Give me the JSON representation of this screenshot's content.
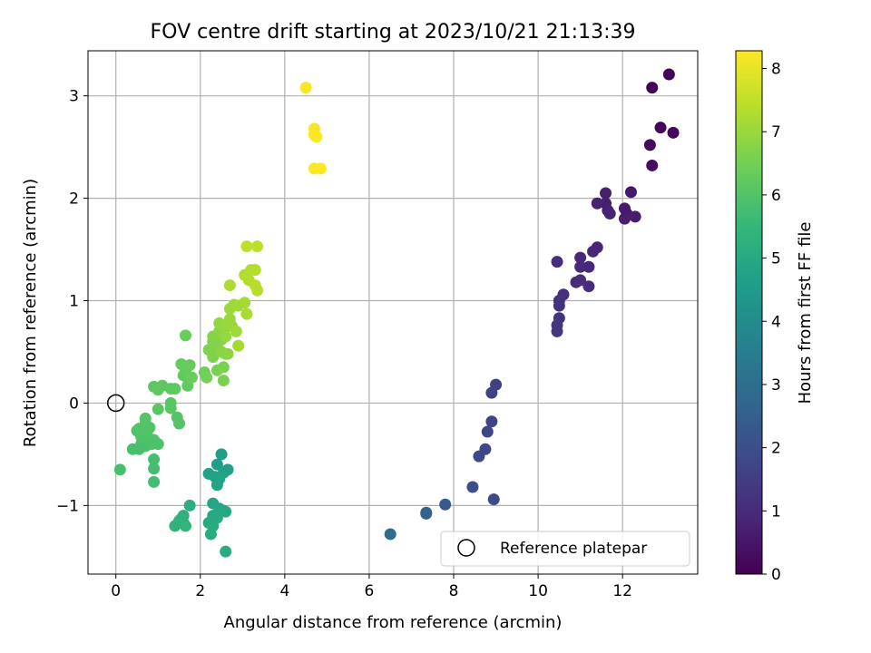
{
  "chart_data": {
    "type": "scatter",
    "title": "FOV centre drift starting at 2023/10/21 21:13:39",
    "xlabel": "Angular distance from reference (arcmin)",
    "ylabel": "Rotation from reference (arcmin)",
    "xlim": [
      -0.66,
      13.78
    ],
    "ylim": [
      -1.67,
      3.44
    ],
    "xticks": [
      0,
      2,
      4,
      6,
      8,
      10,
      12
    ],
    "yticks": [
      -1,
      0,
      1,
      2,
      3
    ],
    "grid": true,
    "legend": {
      "position": "lower-right",
      "entries": [
        "Reference platepar"
      ]
    },
    "reference_point": {
      "x": 0,
      "y": 0
    },
    "colorbar": {
      "label": "Hours from first FF file",
      "range": [
        0,
        8.28
      ],
      "ticks": [
        0,
        1,
        2,
        3,
        4,
        5,
        6,
        7,
        8
      ],
      "colormap": "viridis",
      "colors": [
        "#440154",
        "#482878",
        "#3e4989",
        "#31688e",
        "#26828e",
        "#1f9e89",
        "#35b779",
        "#6ece58",
        "#b5de2b",
        "#fde725"
      ]
    },
    "points": [
      {
        "x": 12.7,
        "y": 3.08,
        "c": 0.05
      },
      {
        "x": 13.1,
        "y": 3.21,
        "c": 0.1
      },
      {
        "x": 12.9,
        "y": 2.69,
        "c": 0.15
      },
      {
        "x": 13.2,
        "y": 2.64,
        "c": 0.2
      },
      {
        "x": 12.65,
        "y": 2.52,
        "c": 0.25
      },
      {
        "x": 12.7,
        "y": 2.32,
        "c": 0.3
      },
      {
        "x": 12.2,
        "y": 2.06,
        "c": 0.55
      },
      {
        "x": 12.05,
        "y": 1.9,
        "c": 0.6
      },
      {
        "x": 12.1,
        "y": 1.85,
        "c": 0.6
      },
      {
        "x": 12.3,
        "y": 1.82,
        "c": 0.65
      },
      {
        "x": 12.05,
        "y": 1.8,
        "c": 0.65
      },
      {
        "x": 11.6,
        "y": 2.05,
        "c": 0.7
      },
      {
        "x": 11.6,
        "y": 1.95,
        "c": 0.7
      },
      {
        "x": 11.4,
        "y": 1.95,
        "c": 0.75
      },
      {
        "x": 11.65,
        "y": 1.88,
        "c": 0.75
      },
      {
        "x": 11.7,
        "y": 1.85,
        "c": 0.8
      },
      {
        "x": 11.4,
        "y": 1.52,
        "c": 0.85
      },
      {
        "x": 11.3,
        "y": 1.48,
        "c": 0.9
      },
      {
        "x": 11.2,
        "y": 1.33,
        "c": 0.95
      },
      {
        "x": 11.0,
        "y": 1.42,
        "c": 0.95
      },
      {
        "x": 11.0,
        "y": 1.33,
        "c": 1.0
      },
      {
        "x": 10.9,
        "y": 1.18,
        "c": 1.0
      },
      {
        "x": 11.0,
        "y": 1.2,
        "c": 1.05
      },
      {
        "x": 11.2,
        "y": 1.14,
        "c": 1.05
      },
      {
        "x": 10.45,
        "y": 1.38,
        "c": 1.1
      },
      {
        "x": 10.6,
        "y": 1.06,
        "c": 1.15
      },
      {
        "x": 10.5,
        "y": 1.0,
        "c": 1.2
      },
      {
        "x": 10.5,
        "y": 0.95,
        "c": 1.2
      },
      {
        "x": 10.5,
        "y": 0.83,
        "c": 1.25
      },
      {
        "x": 10.45,
        "y": 0.76,
        "c": 1.3
      },
      {
        "x": 10.45,
        "y": 0.7,
        "c": 1.3
      },
      {
        "x": 9.0,
        "y": 0.18,
        "c": 1.6
      },
      {
        "x": 8.9,
        "y": 0.1,
        "c": 1.65
      },
      {
        "x": 8.9,
        "y": -0.18,
        "c": 1.7
      },
      {
        "x": 8.8,
        "y": -0.28,
        "c": 1.75
      },
      {
        "x": 8.75,
        "y": -0.45,
        "c": 1.8
      },
      {
        "x": 8.6,
        "y": -0.52,
        "c": 1.85
      },
      {
        "x": 8.45,
        "y": -0.82,
        "c": 1.95
      },
      {
        "x": 8.95,
        "y": -0.94,
        "c": 1.9
      },
      {
        "x": 7.8,
        "y": -0.99,
        "c": 2.35
      },
      {
        "x": 7.35,
        "y": -1.07,
        "c": 2.6
      },
      {
        "x": 7.35,
        "y": -1.08,
        "c": 2.65
      },
      {
        "x": 6.5,
        "y": -1.28,
        "c": 2.9
      },
      {
        "x": 2.5,
        "y": -0.5,
        "c": 4.6
      },
      {
        "x": 2.4,
        "y": -0.6,
        "c": 4.65
      },
      {
        "x": 2.65,
        "y": -0.65,
        "c": 4.7
      },
      {
        "x": 2.55,
        "y": -0.68,
        "c": 4.7
      },
      {
        "x": 2.2,
        "y": -0.69,
        "c": 4.75
      },
      {
        "x": 2.35,
        "y": -0.72,
        "c": 4.75
      },
      {
        "x": 2.45,
        "y": -0.74,
        "c": 4.8
      },
      {
        "x": 2.4,
        "y": -0.8,
        "c": 4.8
      },
      {
        "x": 2.3,
        "y": -0.98,
        "c": 4.85
      },
      {
        "x": 2.45,
        "y": -1.03,
        "c": 4.9
      },
      {
        "x": 2.55,
        "y": -1.05,
        "c": 4.9
      },
      {
        "x": 2.6,
        "y": -1.06,
        "c": 4.95
      },
      {
        "x": 2.3,
        "y": -1.1,
        "c": 4.95
      },
      {
        "x": 2.4,
        "y": -1.12,
        "c": 5.0
      },
      {
        "x": 2.2,
        "y": -1.17,
        "c": 5.0
      },
      {
        "x": 2.3,
        "y": -1.2,
        "c": 5.05
      },
      {
        "x": 2.25,
        "y": -1.28,
        "c": 5.1
      },
      {
        "x": 2.6,
        "y": -1.45,
        "c": 5.1
      },
      {
        "x": 1.75,
        "y": -1.0,
        "c": 5.2
      },
      {
        "x": 1.6,
        "y": -1.1,
        "c": 5.25
      },
      {
        "x": 1.55,
        "y": -1.13,
        "c": 5.3
      },
      {
        "x": 1.5,
        "y": -1.15,
        "c": 5.3
      },
      {
        "x": 1.6,
        "y": -1.17,
        "c": 5.35
      },
      {
        "x": 1.4,
        "y": -1.2,
        "c": 5.35
      },
      {
        "x": 1.65,
        "y": -1.2,
        "c": 5.4
      },
      {
        "x": 0.1,
        "y": -0.65,
        "c": 5.85
      },
      {
        "x": 0.9,
        "y": -0.77,
        "c": 5.75
      },
      {
        "x": 0.9,
        "y": -0.64,
        "c": 5.75
      },
      {
        "x": 0.9,
        "y": -0.55,
        "c": 5.8
      },
      {
        "x": 0.4,
        "y": -0.45,
        "c": 5.8
      },
      {
        "x": 0.55,
        "y": -0.45,
        "c": 5.85
      },
      {
        "x": 0.7,
        "y": -0.42,
        "c": 5.85
      },
      {
        "x": 0.6,
        "y": -0.4,
        "c": 5.85
      },
      {
        "x": 0.85,
        "y": -0.4,
        "c": 5.9
      },
      {
        "x": 1.0,
        "y": -0.4,
        "c": 5.9
      },
      {
        "x": 0.9,
        "y": -0.36,
        "c": 5.9
      },
      {
        "x": 0.6,
        "y": -0.33,
        "c": 5.95
      },
      {
        "x": 0.75,
        "y": -0.32,
        "c": 5.95
      },
      {
        "x": 0.5,
        "y": -0.27,
        "c": 5.95
      },
      {
        "x": 0.55,
        "y": -0.25,
        "c": 6.0
      },
      {
        "x": 0.8,
        "y": -0.24,
        "c": 6.0
      },
      {
        "x": 0.7,
        "y": -0.2,
        "c": 6.0
      },
      {
        "x": 0.7,
        "y": -0.15,
        "c": 6.05
      },
      {
        "x": 1.5,
        "y": -0.2,
        "c": 6.05
      },
      {
        "x": 1.45,
        "y": -0.14,
        "c": 6.05
      },
      {
        "x": 1.0,
        "y": -0.06,
        "c": 6.1
      },
      {
        "x": 1.3,
        "y": -0.05,
        "c": 6.1
      },
      {
        "x": 1.3,
        "y": 0.0,
        "c": 6.1
      },
      {
        "x": 0.9,
        "y": 0.16,
        "c": 6.15
      },
      {
        "x": 1.0,
        "y": 0.15,
        "c": 6.15
      },
      {
        "x": 1.1,
        "y": 0.17,
        "c": 6.15
      },
      {
        "x": 1.4,
        "y": 0.14,
        "c": 6.2
      },
      {
        "x": 1.3,
        "y": 0.14,
        "c": 6.2
      },
      {
        "x": 1.0,
        "y": 0.13,
        "c": 6.2
      },
      {
        "x": 1.7,
        "y": 0.17,
        "c": 6.25
      },
      {
        "x": 1.6,
        "y": 0.27,
        "c": 6.25
      },
      {
        "x": 1.65,
        "y": 0.32,
        "c": 6.3
      },
      {
        "x": 1.55,
        "y": 0.38,
        "c": 6.3
      },
      {
        "x": 1.75,
        "y": 0.37,
        "c": 6.3
      },
      {
        "x": 1.8,
        "y": 0.25,
        "c": 6.35
      },
      {
        "x": 1.65,
        "y": 0.66,
        "c": 6.35
      },
      {
        "x": 2.1,
        "y": 0.3,
        "c": 6.45
      },
      {
        "x": 2.15,
        "y": 0.25,
        "c": 6.5
      },
      {
        "x": 2.4,
        "y": 0.32,
        "c": 6.55
      },
      {
        "x": 2.55,
        "y": 0.22,
        "c": 6.6
      },
      {
        "x": 2.55,
        "y": 0.35,
        "c": 6.6
      },
      {
        "x": 2.3,
        "y": 0.45,
        "c": 6.65
      },
      {
        "x": 2.2,
        "y": 0.52,
        "c": 6.65
      },
      {
        "x": 2.4,
        "y": 0.55,
        "c": 6.7
      },
      {
        "x": 2.3,
        "y": 0.6,
        "c": 6.7
      },
      {
        "x": 2.3,
        "y": 0.65,
        "c": 6.75
      },
      {
        "x": 2.5,
        "y": 0.62,
        "c": 6.75
      },
      {
        "x": 2.45,
        "y": 0.7,
        "c": 6.8
      },
      {
        "x": 2.5,
        "y": 0.5,
        "c": 6.8
      },
      {
        "x": 2.6,
        "y": 0.48,
        "c": 6.85
      },
      {
        "x": 2.65,
        "y": 0.48,
        "c": 6.85
      },
      {
        "x": 2.45,
        "y": 0.78,
        "c": 6.9
      },
      {
        "x": 2.55,
        "y": 0.75,
        "c": 6.9
      },
      {
        "x": 2.6,
        "y": 0.65,
        "c": 6.95
      },
      {
        "x": 2.65,
        "y": 0.75,
        "c": 6.95
      },
      {
        "x": 2.75,
        "y": 0.75,
        "c": 7.0
      },
      {
        "x": 2.7,
        "y": 0.82,
        "c": 7.0
      },
      {
        "x": 2.7,
        "y": 0.92,
        "c": 7.05
      },
      {
        "x": 2.8,
        "y": 0.96,
        "c": 7.05
      },
      {
        "x": 2.9,
        "y": 0.95,
        "c": 7.1
      },
      {
        "x": 2.85,
        "y": 0.7,
        "c": 7.1
      },
      {
        "x": 2.9,
        "y": 0.56,
        "c": 7.15
      },
      {
        "x": 3.05,
        "y": 0.98,
        "c": 7.15
      },
      {
        "x": 3.1,
        "y": 0.87,
        "c": 7.2
      },
      {
        "x": 2.7,
        "y": 1.15,
        "c": 7.25
      },
      {
        "x": 3.05,
        "y": 1.25,
        "c": 7.3
      },
      {
        "x": 3.15,
        "y": 1.2,
        "c": 7.3
      },
      {
        "x": 3.2,
        "y": 1.3,
        "c": 7.35
      },
      {
        "x": 3.3,
        "y": 1.3,
        "c": 7.35
      },
      {
        "x": 3.3,
        "y": 1.15,
        "c": 7.4
      },
      {
        "x": 3.35,
        "y": 1.1,
        "c": 7.4
      },
      {
        "x": 3.1,
        "y": 1.53,
        "c": 7.45
      },
      {
        "x": 3.35,
        "y": 1.53,
        "c": 7.45
      },
      {
        "x": 4.5,
        "y": 3.08,
        "c": 8.2
      },
      {
        "x": 4.7,
        "y": 2.68,
        "c": 8.2
      },
      {
        "x": 4.7,
        "y": 2.62,
        "c": 8.22
      },
      {
        "x": 4.75,
        "y": 2.6,
        "c": 8.24
      },
      {
        "x": 4.7,
        "y": 2.29,
        "c": 8.25
      },
      {
        "x": 4.85,
        "y": 2.29,
        "c": 8.26
      }
    ]
  }
}
